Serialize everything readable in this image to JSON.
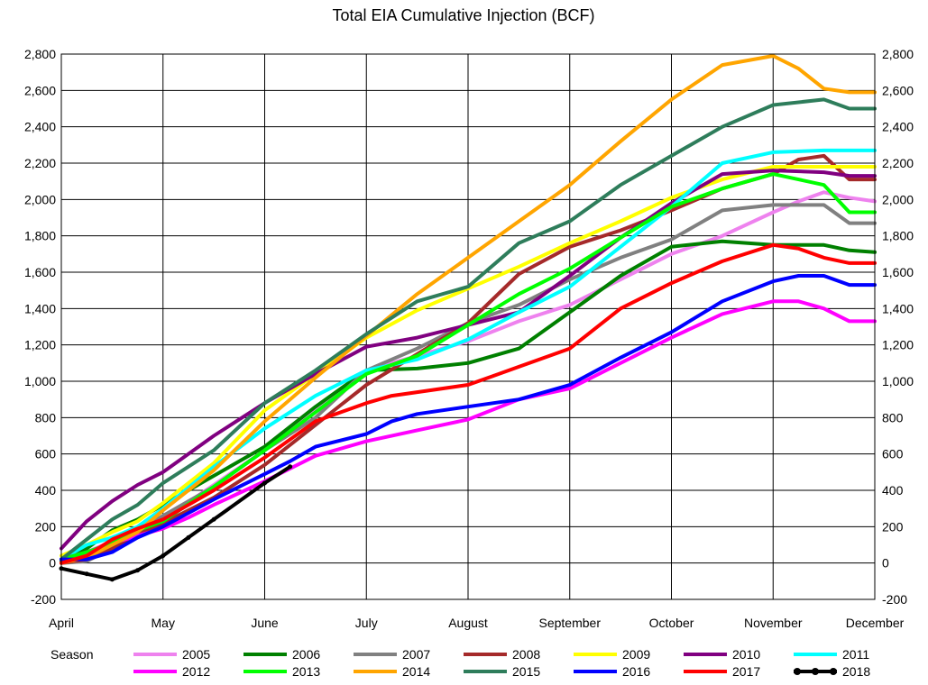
{
  "chart_data": {
    "type": "line",
    "title": "Total EIA Cumulative Injection (BCF)",
    "xlabel": "",
    "ylabel": "",
    "x_ticks": [
      "April",
      "May",
      "June",
      "July",
      "August",
      "September",
      "October",
      "November",
      "December"
    ],
    "xlim": [
      0,
      8
    ],
    "ylim": [
      -200,
      2800
    ],
    "y_ticks": [
      "-200",
      "0",
      "200",
      "400",
      "600",
      "800",
      "1,000",
      "1,200",
      "1,400",
      "1,600",
      "1,800",
      "2,000",
      "2,200",
      "2,400",
      "2,600",
      "2,800"
    ],
    "y_tick_values": [
      -200,
      0,
      200,
      400,
      600,
      800,
      1000,
      1200,
      1400,
      1600,
      1800,
      2000,
      2200,
      2400,
      2600,
      2800
    ],
    "grid": true,
    "legend_title": "Season",
    "legend_position": "bottom",
    "series": [
      {
        "name": "2005",
        "color": "#ee82ee",
        "x": [
          0,
          0.25,
          0.5,
          0.75,
          1,
          1.5,
          2,
          2.5,
          3,
          3.5,
          4,
          4.5,
          5,
          5.5,
          6,
          6.5,
          7,
          7.25,
          7.5,
          7.75,
          8
        ],
        "y": [
          20,
          60,
          120,
          180,
          240,
          430,
          620,
          840,
          1060,
          1140,
          1220,
          1330,
          1420,
          1560,
          1700,
          1800,
          1930,
          1990,
          2040,
          2010,
          1990
        ]
      },
      {
        "name": "2006",
        "color": "#008000",
        "x": [
          0,
          0.25,
          0.5,
          0.75,
          1,
          1.5,
          2,
          2.5,
          3,
          3.5,
          4,
          4.5,
          5,
          5.5,
          6,
          6.5,
          7,
          7.5,
          7.75,
          8
        ],
        "y": [
          10,
          80,
          180,
          240,
          320,
          480,
          640,
          860,
          1060,
          1070,
          1100,
          1180,
          1380,
          1580,
          1740,
          1770,
          1750,
          1750,
          1720,
          1710
        ]
      },
      {
        "name": "2007",
        "color": "#808080",
        "x": [
          0,
          0.25,
          0.5,
          0.75,
          1,
          1.5,
          2,
          2.5,
          3,
          3.5,
          4,
          4.5,
          5,
          5.5,
          6,
          6.5,
          7,
          7.5,
          7.75,
          8
        ],
        "y": [
          0,
          10,
          80,
          170,
          260,
          420,
          620,
          800,
          1060,
          1180,
          1320,
          1420,
          1560,
          1680,
          1780,
          1940,
          1970,
          1970,
          1870,
          1870
        ]
      },
      {
        "name": "2008",
        "color": "#a52a2a",
        "x": [
          0,
          0.25,
          0.5,
          0.75,
          1,
          1.5,
          2,
          2.5,
          3,
          3.5,
          4,
          4.5,
          5,
          5.5,
          6,
          6.5,
          7,
          7.25,
          7.5,
          7.75,
          8
        ],
        "y": [
          0,
          20,
          80,
          160,
          220,
          360,
          540,
          760,
          980,
          1150,
          1320,
          1590,
          1740,
          1830,
          1940,
          2060,
          2140,
          2220,
          2240,
          2110,
          2110
        ]
      },
      {
        "name": "2009",
        "color": "#ffff00",
        "x": [
          0,
          0.25,
          0.5,
          0.75,
          1,
          1.5,
          2,
          2.5,
          3,
          3.5,
          4,
          4.5,
          5,
          5.5,
          6,
          6.5,
          7,
          7.5,
          8
        ],
        "y": [
          40,
          100,
          170,
          230,
          330,
          550,
          840,
          1040,
          1240,
          1390,
          1510,
          1630,
          1760,
          1880,
          2010,
          2110,
          2180,
          2180,
          2180
        ]
      },
      {
        "name": "2010",
        "color": "#800080",
        "x": [
          0,
          0.25,
          0.5,
          0.75,
          1,
          1.5,
          2,
          2.5,
          3,
          3.5,
          4,
          4.5,
          5,
          5.5,
          6,
          6.5,
          7,
          7.5,
          7.75,
          8
        ],
        "y": [
          80,
          230,
          340,
          430,
          500,
          700,
          880,
          1040,
          1190,
          1240,
          1310,
          1380,
          1580,
          1790,
          1980,
          2140,
          2160,
          2150,
          2130,
          2130
        ]
      },
      {
        "name": "2011",
        "color": "#00ffff",
        "x": [
          0,
          0.25,
          0.5,
          0.75,
          1,
          1.5,
          2,
          2.5,
          3,
          3.5,
          4,
          4.5,
          5,
          5.5,
          6,
          6.5,
          7,
          7.5,
          7.75,
          8
        ],
        "y": [
          20,
          100,
          140,
          200,
          300,
          530,
          740,
          920,
          1060,
          1120,
          1230,
          1380,
          1520,
          1740,
          1960,
          2200,
          2260,
          2270,
          2270,
          2270
        ]
      },
      {
        "name": "2012",
        "color": "#ff00ff",
        "x": [
          0,
          0.25,
          0.5,
          0.75,
          1,
          1.25,
          1.5,
          2,
          2.5,
          3,
          3.5,
          4,
          4.5,
          5,
          5.5,
          6,
          6.5,
          7,
          7.25,
          7.5,
          7.75,
          8
        ],
        "y": [
          20,
          60,
          110,
          150,
          190,
          250,
          320,
          450,
          590,
          670,
          730,
          790,
          900,
          960,
          1100,
          1240,
          1370,
          1440,
          1440,
          1400,
          1330,
          1330
        ]
      },
      {
        "name": "2013",
        "color": "#00ff00",
        "x": [
          0,
          0.25,
          0.5,
          0.75,
          1,
          1.5,
          2,
          2.5,
          3,
          3.5,
          4,
          4.5,
          5,
          5.5,
          6,
          6.5,
          7,
          7.25,
          7.5,
          7.75,
          8
        ],
        "y": [
          20,
          60,
          110,
          180,
          230,
          420,
          620,
          830,
          1040,
          1140,
          1310,
          1480,
          1620,
          1790,
          1960,
          2060,
          2140,
          2110,
          2080,
          1930,
          1930
        ]
      },
      {
        "name": "2014",
        "color": "#ffa500",
        "x": [
          0,
          0.25,
          0.5,
          0.75,
          1,
          1.5,
          2,
          2.5,
          3,
          3.5,
          4,
          4.5,
          5,
          5.5,
          6,
          6.5,
          7,
          7.25,
          7.5,
          7.75,
          8
        ],
        "y": [
          0,
          30,
          100,
          170,
          290,
          510,
          780,
          1020,
          1250,
          1480,
          1680,
          1880,
          2080,
          2320,
          2550,
          2740,
          2790,
          2720,
          2610,
          2590,
          2590
        ]
      },
      {
        "name": "2015",
        "color": "#2e7d5b",
        "x": [
          0,
          0.25,
          0.5,
          0.75,
          1,
          1.5,
          2,
          2.5,
          3,
          3.5,
          4,
          4.5,
          5,
          5.5,
          6,
          6.5,
          7,
          7.5,
          7.75,
          8
        ],
        "y": [
          20,
          130,
          240,
          320,
          440,
          620,
          880,
          1060,
          1260,
          1440,
          1520,
          1760,
          1880,
          2080,
          2240,
          2400,
          2520,
          2550,
          2500,
          2500
        ]
      },
      {
        "name": "2016",
        "color": "#0000ff",
        "x": [
          0,
          0.25,
          0.5,
          0.75,
          1,
          1.5,
          2,
          2.25,
          2.5,
          3,
          3.25,
          3.5,
          4,
          4.5,
          5,
          5.5,
          6,
          6.5,
          7,
          7.25,
          7.5,
          7.75,
          8
        ],
        "y": [
          20,
          20,
          60,
          140,
          200,
          350,
          490,
          560,
          640,
          710,
          780,
          820,
          860,
          900,
          980,
          1130,
          1270,
          1440,
          1550,
          1580,
          1580,
          1530,
          1530
        ]
      },
      {
        "name": "2017",
        "color": "#ff0000",
        "x": [
          0,
          0.25,
          0.5,
          0.75,
          1,
          1.5,
          2,
          2.5,
          3,
          3.25,
          3.5,
          4,
          4.25,
          4.5,
          5,
          5.5,
          6,
          6.5,
          7,
          7.25,
          7.5,
          7.75,
          8
        ],
        "y": [
          0,
          40,
          130,
          190,
          240,
          400,
          580,
          780,
          880,
          920,
          940,
          980,
          1030,
          1080,
          1180,
          1400,
          1540,
          1660,
          1750,
          1730,
          1680,
          1650,
          1650
        ]
      },
      {
        "name": "2018",
        "color": "#000000",
        "x": [
          0,
          0.25,
          0.5,
          0.75,
          1,
          1.25,
          1.5,
          2,
          2.25
        ],
        "y": [
          -30,
          -60,
          -90,
          -40,
          40,
          140,
          240,
          440,
          530
        ]
      }
    ]
  }
}
